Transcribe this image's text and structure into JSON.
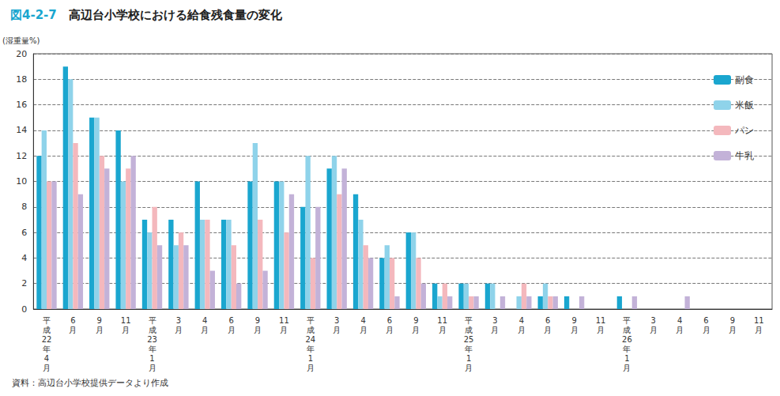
{
  "chart_data": {
    "type": "bar",
    "title": "図4-2-7　高辺台小学校における給食残食量の変化",
    "y_label": "(湿重量%)",
    "source": "資料：高辺台小学校提供データより作成",
    "categories": [
      "平成22年4月",
      "6月",
      "9月",
      "11月",
      "平成23年1月",
      "3月",
      "4月",
      "6月",
      "9月",
      "11月",
      "平成24年1月",
      "3月",
      "4月",
      "6月",
      "9月",
      "11月",
      "平成25年1月",
      "3月",
      "4月",
      "6月",
      "9月",
      "11月",
      "平成26年1月",
      "3月",
      "4月",
      "6月",
      "9月",
      "11月"
    ],
    "series": [
      {
        "name": "副食",
        "color": "#1aa6cf",
        "values": [
          12,
          19,
          15,
          14,
          7,
          7,
          10,
          7,
          10,
          10,
          8,
          11,
          9,
          4,
          6,
          2,
          2,
          2,
          0,
          1,
          1,
          0,
          1,
          0,
          0,
          0,
          0,
          0
        ]
      },
      {
        "name": "米飯",
        "color": "#8fd3ea",
        "values": [
          14,
          18,
          15,
          10,
          6,
          5,
          7,
          7,
          13,
          10,
          12,
          12,
          7,
          5,
          6,
          1,
          2,
          2,
          1,
          2,
          0,
          0,
          0,
          0,
          0,
          0,
          0,
          0
        ]
      },
      {
        "name": "パン",
        "color": "#f4b8bd",
        "values": [
          10,
          13,
          12,
          11,
          8,
          6,
          7,
          5,
          7,
          6,
          4,
          9,
          5,
          4,
          4,
          2,
          1,
          0,
          2,
          1,
          0,
          0,
          0,
          0,
          0,
          0,
          0,
          0
        ]
      },
      {
        "name": "牛乳",
        "color": "#c3b2d8",
        "values": [
          10,
          9,
          11,
          12,
          5,
          5,
          3,
          2,
          3,
          9,
          8,
          11,
          4,
          1,
          2,
          1,
          1,
          1,
          1,
          1,
          1,
          0,
          1,
          0,
          1,
          0,
          0,
          0
        ]
      }
    ],
    "ylim": [
      0,
      20
    ],
    "yticks": [
      0,
      2,
      4,
      6,
      8,
      10,
      12,
      14,
      16,
      18,
      20
    ],
    "grid": true,
    "legend": "right"
  }
}
